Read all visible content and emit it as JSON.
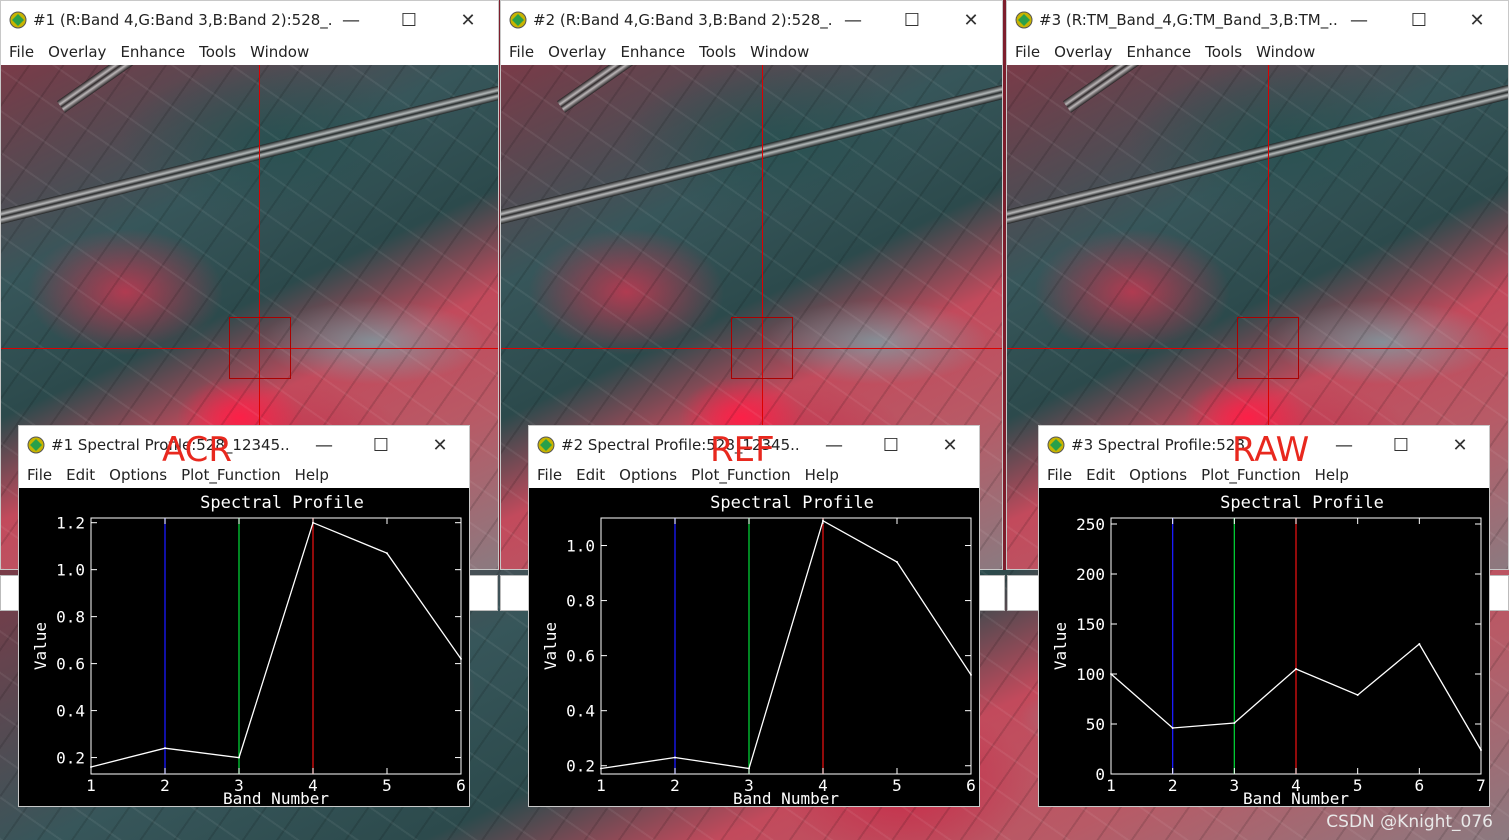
{
  "image_windows": [
    {
      "title": "#1 (R:Band 4,G:Band 3,B:Band 2):528_...",
      "menu": [
        "File",
        "Overlay",
        "Enhance",
        "Tools",
        "Window"
      ]
    },
    {
      "title": "#2 (R:Band 4,G:Band 3,B:Band 2):528_...",
      "menu": [
        "File",
        "Overlay",
        "Enhance",
        "Tools",
        "Window"
      ]
    },
    {
      "title": "#3 (R:TM_Band_4,G:TM_Band_3,B:TM_...",
      "menu": [
        "File",
        "Overlay",
        "Enhance",
        "Tools",
        "Window"
      ]
    }
  ],
  "plot_windows": [
    {
      "title": "#1 Spectral Profile:528_12345...",
      "label": "ACR",
      "menu": [
        "File",
        "Edit",
        "Options",
        "Plot_Function",
        "Help"
      ]
    },
    {
      "title": "#2 Spectral Profile:528_12345...",
      "label": "REF",
      "menu": [
        "File",
        "Edit",
        "Options",
        "Plot_Function",
        "Help"
      ]
    },
    {
      "title": "#3 Spectral Profile:528",
      "label": "RAW",
      "menu": [
        "File",
        "Edit",
        "Options",
        "Plot_Function",
        "Help"
      ]
    }
  ],
  "controls": {
    "minimize": "—",
    "maximize": "☐",
    "close": "✕"
  },
  "watermark": "CSDN @Knight_076",
  "colors": {
    "blue_band": "#1a1aff",
    "green_band": "#00cc33",
    "red_band": "#e01010",
    "profile_line": "#ffffff",
    "overlay_text": "#e8281e"
  },
  "chart_data": [
    {
      "type": "line",
      "title": "Spectral Profile",
      "xlabel": "Band Number",
      "ylabel": "Value",
      "x": [
        1,
        2,
        3,
        4,
        5,
        6
      ],
      "series": [
        {
          "values": [
            0.16,
            0.24,
            0.2,
            1.2,
            1.07,
            0.62
          ]
        }
      ],
      "xlim": [
        1,
        6
      ],
      "ylim": [
        0.13,
        1.22
      ],
      "yticks": [
        0.2,
        0.4,
        0.6,
        0.8,
        1.0,
        1.2
      ],
      "ytick_labels": [
        "0.2",
        "0.4",
        "0.6",
        "0.8",
        "1.0",
        "1.2"
      ],
      "xticks": [
        1,
        2,
        3,
        4,
        5,
        6
      ],
      "band_markers": {
        "blue": 2,
        "green": 3,
        "red": 4
      }
    },
    {
      "type": "line",
      "title": "Spectral Profile",
      "xlabel": "Band Number",
      "ylabel": "Value",
      "x": [
        1,
        2,
        3,
        4,
        5,
        6
      ],
      "series": [
        {
          "values": [
            0.19,
            0.23,
            0.19,
            1.09,
            0.94,
            0.53
          ]
        }
      ],
      "xlim": [
        1,
        6
      ],
      "ylim": [
        0.17,
        1.1
      ],
      "yticks": [
        0.2,
        0.4,
        0.6,
        0.8,
        1.0
      ],
      "ytick_labels": [
        "0.2",
        "0.4",
        "0.6",
        "0.8",
        "1.0"
      ],
      "xticks": [
        1,
        2,
        3,
        4,
        5,
        6
      ],
      "band_markers": {
        "blue": 2,
        "green": 3,
        "red": 4
      }
    },
    {
      "type": "line",
      "title": "Spectral Profile",
      "xlabel": "Band Number",
      "ylabel": "Value",
      "x": [
        1,
        2,
        3,
        4,
        5,
        6,
        7
      ],
      "series": [
        {
          "values": [
            100,
            46,
            51,
            105,
            79,
            130,
            24
          ]
        }
      ],
      "xlim": [
        1,
        7
      ],
      "ylim": [
        0,
        256
      ],
      "yticks": [
        0,
        50,
        100,
        150,
        200,
        250
      ],
      "ytick_labels": [
        "0",
        "50",
        "100",
        "150",
        "200",
        "250"
      ],
      "xticks": [
        1,
        2,
        3,
        4,
        5,
        6,
        7
      ],
      "band_markers": {
        "blue": 2,
        "green": 3,
        "red": 4
      }
    }
  ]
}
